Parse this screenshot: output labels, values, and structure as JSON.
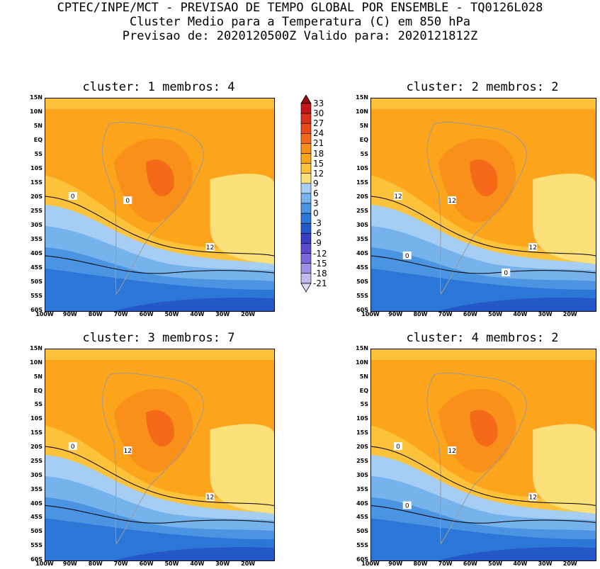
{
  "header": {
    "line1": "CPTEC/INPE/MCT - PREVISAO DE TEMPO GLOBAL POR ENSEMBLE - TQ0126L028",
    "line2": "Cluster Medio para a Temperatura (C) em 850 hPa",
    "line3": "Previsao de: 2020120500Z   Valido para: 2020121812Z"
  },
  "axes": {
    "lat_labels": [
      "15N",
      "10N",
      "5N",
      "EQ",
      "5S",
      "10S",
      "15S",
      "20S",
      "25S",
      "30S",
      "35S",
      "40S",
      "45S",
      "50S",
      "55S",
      "60S"
    ],
    "lon_labels": [
      "100W",
      "90W",
      "80W",
      "70W",
      "60W",
      "50W",
      "40W",
      "30W",
      "20W"
    ]
  },
  "panels": [
    {
      "title": "cluster: 1   membros: 4",
      "contour_labels": [
        "12",
        "0",
        "0"
      ]
    },
    {
      "title": "cluster: 2   membros: 2",
      "contour_labels": [
        "12",
        "12",
        "12",
        "0",
        "0"
      ]
    },
    {
      "title": "cluster: 3   membros: 7",
      "contour_labels": [
        "12",
        "12",
        "0"
      ]
    },
    {
      "title": "cluster: 4   membros: 2",
      "contour_labels": [
        "12",
        "12",
        "0",
        "0"
      ]
    }
  ],
  "colorbar": {
    "levels": [
      "33",
      "30",
      "27",
      "24",
      "21",
      "18",
      "15",
      "12",
      "9",
      "6",
      "3",
      "0",
      "-3",
      "-6",
      "-9",
      "-12",
      "-15",
      "-18",
      "-21"
    ],
    "colors": [
      "#9a0a0a",
      "#c01818",
      "#d8301c",
      "#ea4a18",
      "#f46a18",
      "#f8901a",
      "#fca41c",
      "#fcc23a",
      "#fce07a",
      "#a6cef4",
      "#76b2ec",
      "#4a94e2",
      "#2c76d8",
      "#2458c8",
      "#3a3ec0",
      "#5a4ad0",
      "#7a68dc",
      "#a090e4",
      "#c4b8ee",
      "#e0d8f6"
    ]
  }
}
